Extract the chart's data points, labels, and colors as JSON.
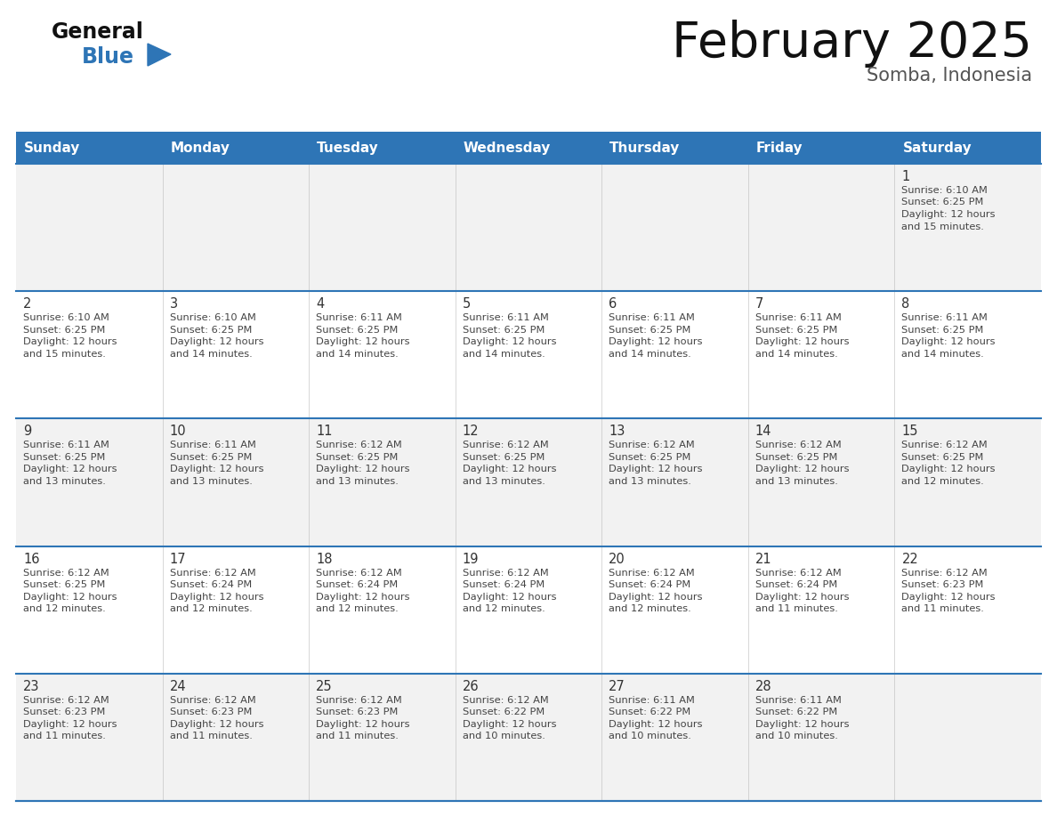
{
  "title": "February 2025",
  "subtitle": "Somba, Indonesia",
  "header_bg": "#2E75B6",
  "header_text_color": "#FFFFFF",
  "cell_bg_odd": "#F2F2F2",
  "cell_bg_even": "#FFFFFF",
  "border_color": "#2E75B6",
  "day_number_color": "#333333",
  "info_text_color": "#444444",
  "days_of_week": [
    "Sunday",
    "Monday",
    "Tuesday",
    "Wednesday",
    "Thursday",
    "Friday",
    "Saturday"
  ],
  "calendar_data": [
    [
      null,
      null,
      null,
      null,
      null,
      null,
      {
        "day": 1,
        "sunrise": "6:10 AM",
        "sunset": "6:25 PM",
        "daylight": "12 hours",
        "daylight2": "and 15 minutes."
      }
    ],
    [
      {
        "day": 2,
        "sunrise": "6:10 AM",
        "sunset": "6:25 PM",
        "daylight": "12 hours",
        "daylight2": "and 15 minutes."
      },
      {
        "day": 3,
        "sunrise": "6:10 AM",
        "sunset": "6:25 PM",
        "daylight": "12 hours",
        "daylight2": "and 14 minutes."
      },
      {
        "day": 4,
        "sunrise": "6:11 AM",
        "sunset": "6:25 PM",
        "daylight": "12 hours",
        "daylight2": "and 14 minutes."
      },
      {
        "day": 5,
        "sunrise": "6:11 AM",
        "sunset": "6:25 PM",
        "daylight": "12 hours",
        "daylight2": "and 14 minutes."
      },
      {
        "day": 6,
        "sunrise": "6:11 AM",
        "sunset": "6:25 PM",
        "daylight": "12 hours",
        "daylight2": "and 14 minutes."
      },
      {
        "day": 7,
        "sunrise": "6:11 AM",
        "sunset": "6:25 PM",
        "daylight": "12 hours",
        "daylight2": "and 14 minutes."
      },
      {
        "day": 8,
        "sunrise": "6:11 AM",
        "sunset": "6:25 PM",
        "daylight": "12 hours",
        "daylight2": "and 14 minutes."
      }
    ],
    [
      {
        "day": 9,
        "sunrise": "6:11 AM",
        "sunset": "6:25 PM",
        "daylight": "12 hours",
        "daylight2": "and 13 minutes."
      },
      {
        "day": 10,
        "sunrise": "6:11 AM",
        "sunset": "6:25 PM",
        "daylight": "12 hours",
        "daylight2": "and 13 minutes."
      },
      {
        "day": 11,
        "sunrise": "6:12 AM",
        "sunset": "6:25 PM",
        "daylight": "12 hours",
        "daylight2": "and 13 minutes."
      },
      {
        "day": 12,
        "sunrise": "6:12 AM",
        "sunset": "6:25 PM",
        "daylight": "12 hours",
        "daylight2": "and 13 minutes."
      },
      {
        "day": 13,
        "sunrise": "6:12 AM",
        "sunset": "6:25 PM",
        "daylight": "12 hours",
        "daylight2": "and 13 minutes."
      },
      {
        "day": 14,
        "sunrise": "6:12 AM",
        "sunset": "6:25 PM",
        "daylight": "12 hours",
        "daylight2": "and 13 minutes."
      },
      {
        "day": 15,
        "sunrise": "6:12 AM",
        "sunset": "6:25 PM",
        "daylight": "12 hours",
        "daylight2": "and 12 minutes."
      }
    ],
    [
      {
        "day": 16,
        "sunrise": "6:12 AM",
        "sunset": "6:25 PM",
        "daylight": "12 hours",
        "daylight2": "and 12 minutes."
      },
      {
        "day": 17,
        "sunrise": "6:12 AM",
        "sunset": "6:24 PM",
        "daylight": "12 hours",
        "daylight2": "and 12 minutes."
      },
      {
        "day": 18,
        "sunrise": "6:12 AM",
        "sunset": "6:24 PM",
        "daylight": "12 hours",
        "daylight2": "and 12 minutes."
      },
      {
        "day": 19,
        "sunrise": "6:12 AM",
        "sunset": "6:24 PM",
        "daylight": "12 hours",
        "daylight2": "and 12 minutes."
      },
      {
        "day": 20,
        "sunrise": "6:12 AM",
        "sunset": "6:24 PM",
        "daylight": "12 hours",
        "daylight2": "and 12 minutes."
      },
      {
        "day": 21,
        "sunrise": "6:12 AM",
        "sunset": "6:24 PM",
        "daylight": "12 hours",
        "daylight2": "and 11 minutes."
      },
      {
        "day": 22,
        "sunrise": "6:12 AM",
        "sunset": "6:23 PM",
        "daylight": "12 hours",
        "daylight2": "and 11 minutes."
      }
    ],
    [
      {
        "day": 23,
        "sunrise": "6:12 AM",
        "sunset": "6:23 PM",
        "daylight": "12 hours",
        "daylight2": "and 11 minutes."
      },
      {
        "day": 24,
        "sunrise": "6:12 AM",
        "sunset": "6:23 PM",
        "daylight": "12 hours",
        "daylight2": "and 11 minutes."
      },
      {
        "day": 25,
        "sunrise": "6:12 AM",
        "sunset": "6:23 PM",
        "daylight": "12 hours",
        "daylight2": "and 11 minutes."
      },
      {
        "day": 26,
        "sunrise": "6:12 AM",
        "sunset": "6:22 PM",
        "daylight": "12 hours",
        "daylight2": "and 10 minutes."
      },
      {
        "day": 27,
        "sunrise": "6:11 AM",
        "sunset": "6:22 PM",
        "daylight": "12 hours",
        "daylight2": "and 10 minutes."
      },
      {
        "day": 28,
        "sunrise": "6:11 AM",
        "sunset": "6:22 PM",
        "daylight": "12 hours",
        "daylight2": "and 10 minutes."
      },
      null
    ]
  ],
  "fig_width": 11.88,
  "fig_height": 9.18,
  "dpi": 100
}
